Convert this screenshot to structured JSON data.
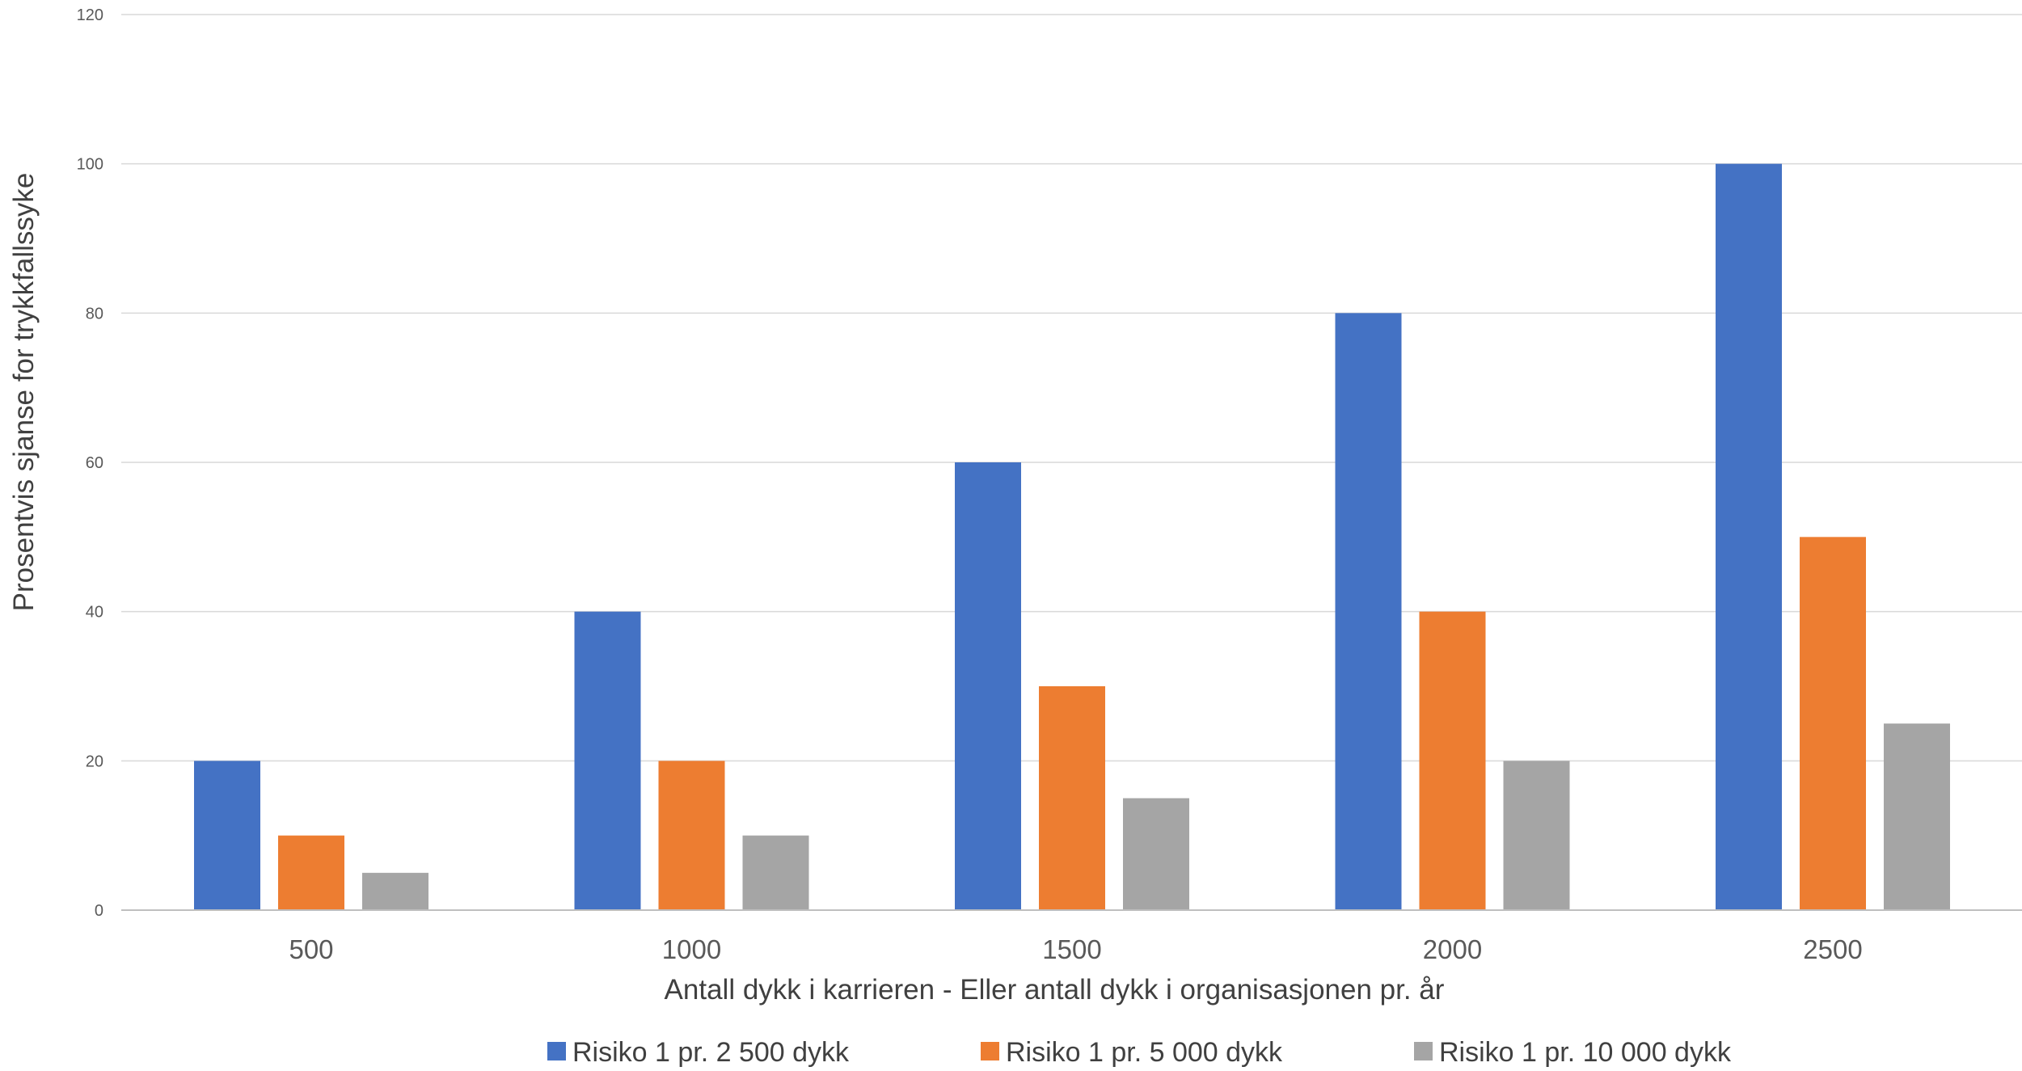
{
  "chart_data": {
    "type": "bar",
    "title": "",
    "xlabel": "Antall dykk i karrieren - Eller antall dykk i organisasjonen pr. år",
    "ylabel": "Prosentvis sjanse for trykkfallssyke",
    "ylim": [
      0,
      120
    ],
    "yticks": [
      "0",
      "20",
      "40",
      "60",
      "80",
      "100",
      "120"
    ],
    "grid": true,
    "legend_position": "bottom",
    "categories": [
      "500",
      "1000",
      "1500",
      "2000",
      "2500"
    ],
    "series": [
      {
        "name": "Risiko 1 pr. 2 500 dykk",
        "color": "#4472C4",
        "values": [
          20,
          40,
          60,
          80,
          100
        ]
      },
      {
        "name": "Risiko 1 pr. 5 000 dykk",
        "color": "#ED7D31",
        "values": [
          10,
          20,
          30,
          40,
          50
        ]
      },
      {
        "name": "Risiko 1 pr. 10 000 dykk",
        "color": "#A5A5A5",
        "values": [
          5,
          10,
          15,
          20,
          25
        ]
      }
    ]
  }
}
